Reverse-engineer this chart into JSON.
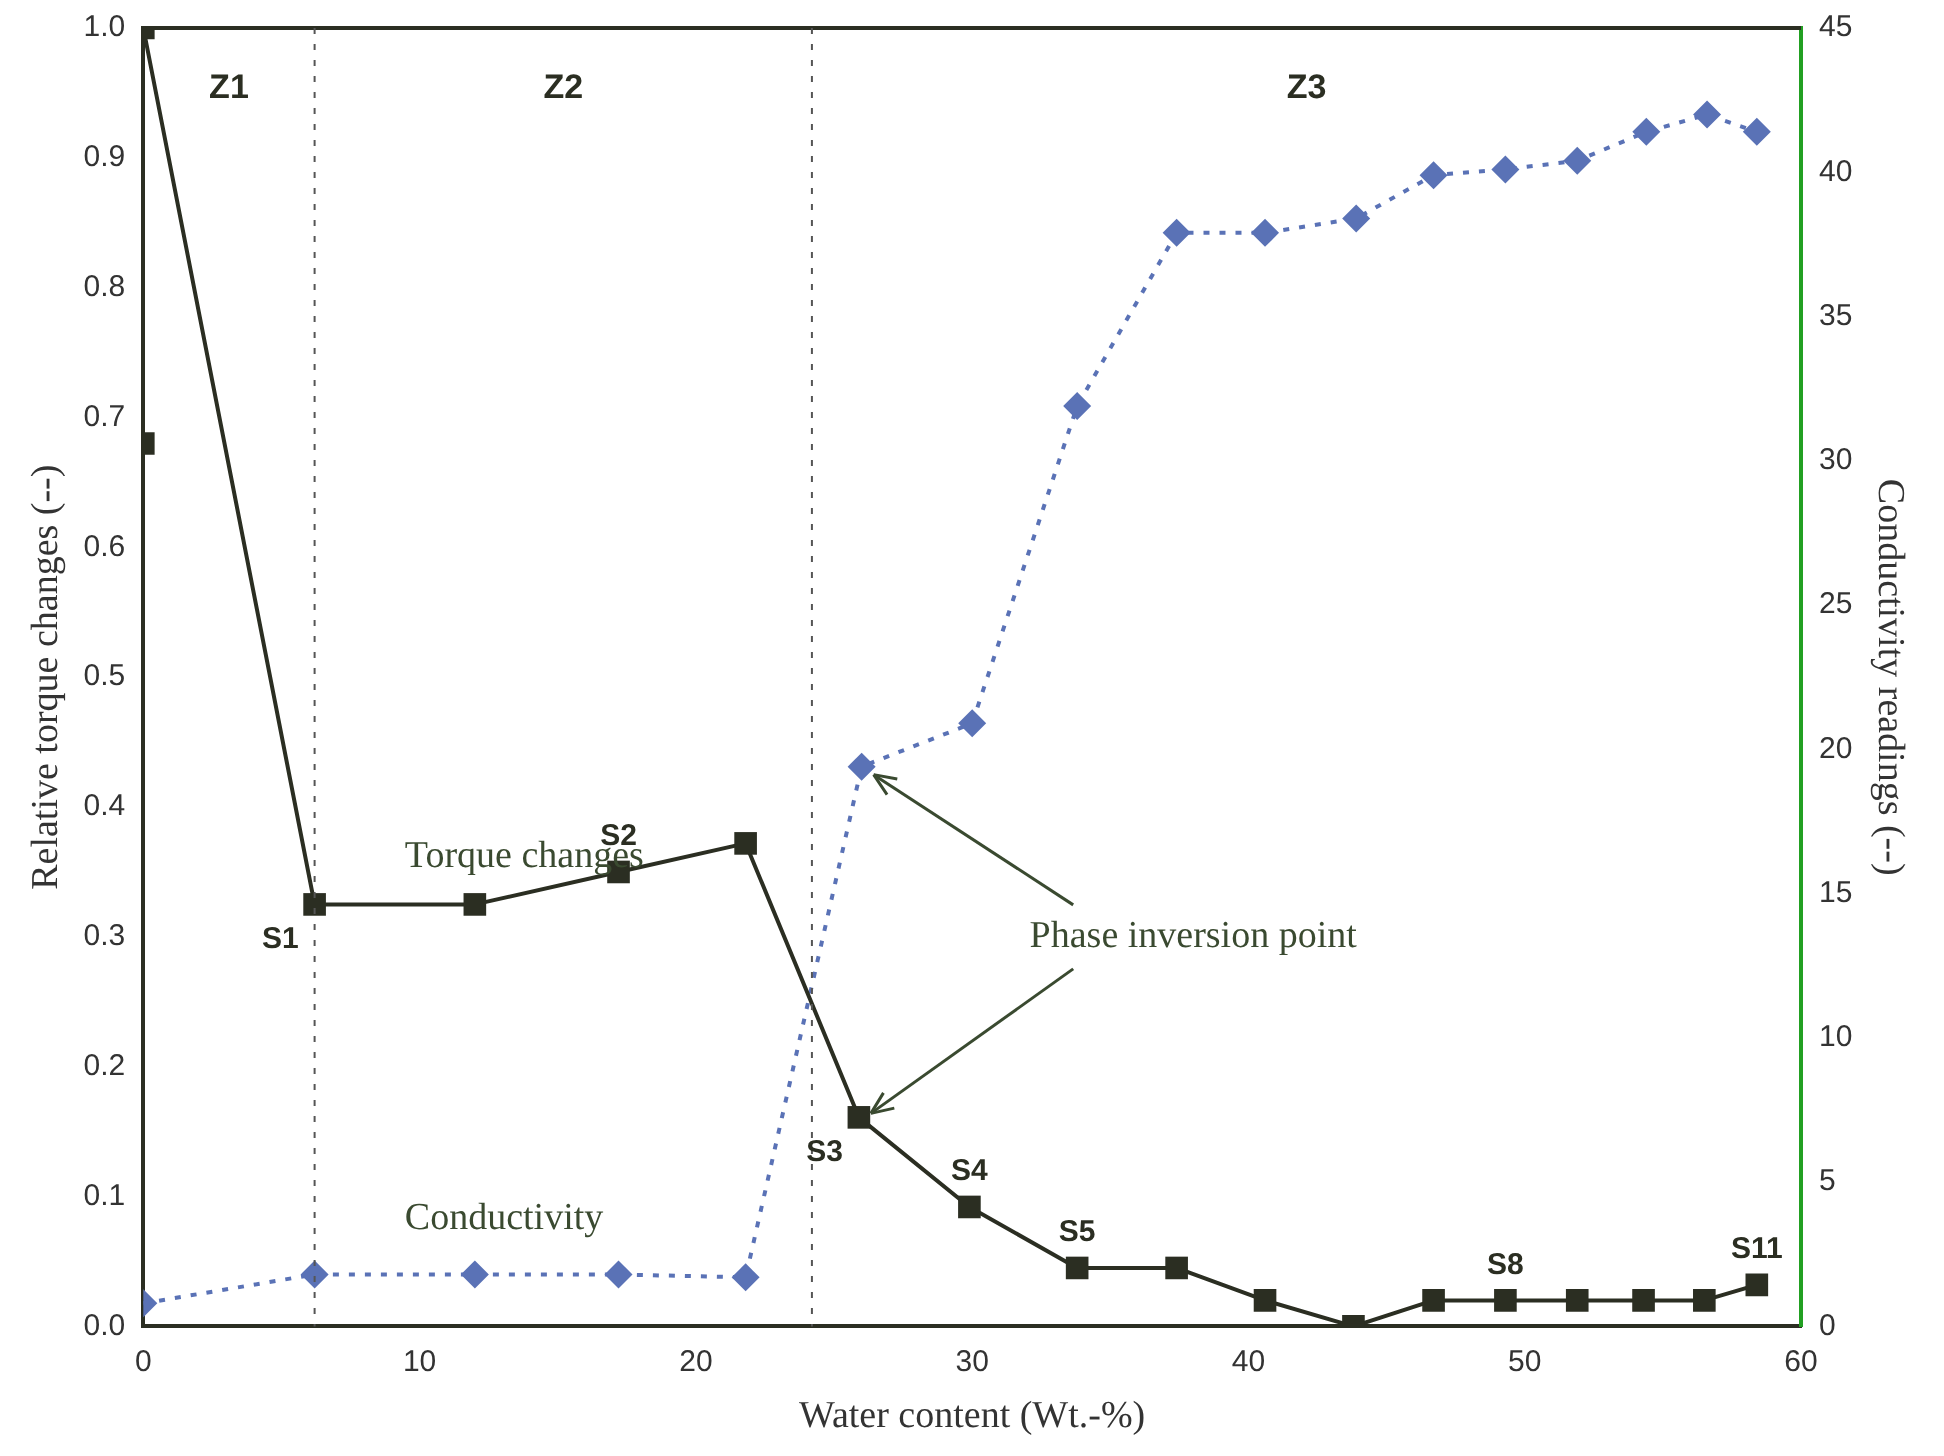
{
  "chart_data": {
    "type": "line",
    "xlabel": "Water content (Wt.-%)",
    "ylabel": "Relative torque changes (--)",
    "y2label": "Conductivity readings (--)",
    "xlim": [
      0,
      60
    ],
    "xticks": [
      0,
      10,
      20,
      30,
      40,
      50,
      60
    ],
    "ylim": [
      0,
      1
    ],
    "yticks": [
      {
        "value": 0,
        "label": "0.0"
      },
      0.1,
      0.2,
      0.3,
      0.4,
      0.5,
      0.6,
      0.7,
      0.8,
      0.9,
      {
        "value": 1,
        "label": "1.0"
      }
    ],
    "y2lim": [
      0,
      45
    ],
    "y2ticks": [
      0,
      5,
      10,
      15,
      20,
      25,
      30,
      35,
      40,
      45
    ],
    "grid": false,
    "legend": false,
    "series": [
      {
        "name": "Torque changes",
        "color": "#2b2e22",
        "marker": "square",
        "line_style": "solid",
        "x": [
          0,
          6.2,
          12.0,
          17.2,
          21.8,
          25.9,
          29.9,
          33.8,
          37.4,
          40.6,
          43.8,
          46.7,
          49.3,
          51.9,
          54.3,
          56.5,
          58.4
        ],
        "values": [
          1.0,
          0.325,
          0.325,
          0.35,
          0.372,
          0.161,
          0.092,
          0.045,
          0.045,
          0.02,
          0,
          0.02,
          0.02,
          0.02,
          0.02,
          0.02,
          0.032
        ]
      },
      {
        "color": "#2b2e22",
        "marker": "square",
        "x": [
          0
        ],
        "values": [
          0.68
        ]
      },
      {
        "name": "Conductivity",
        "color": "#5a72b6",
        "marker": "diamond",
        "line_style": "dotted",
        "axis": "y2",
        "x": [
          0,
          6.2,
          12.0,
          17.2,
          21.8,
          26.0,
          30.0,
          33.8,
          37.4,
          40.6,
          43.9,
          46.7,
          49.3,
          51.9,
          54.4,
          56.6,
          58.4
        ],
        "values": [
          0.8,
          1.8,
          1.8,
          1.8,
          1.7,
          19.4,
          20.9,
          31.9,
          37.9,
          37.9,
          38.4,
          39.9,
          40.1,
          40.4,
          41.4,
          42.0,
          41.4
        ]
      }
    ],
    "ref_lines": [
      {
        "axis": "x",
        "value": 6.2,
        "line_style": "dotted",
        "color": "#555555"
      },
      {
        "axis": "x",
        "value": 24.2,
        "line_style": "dotted",
        "color": "#555555"
      }
    ],
    "annotations": [
      "Z1",
      "Z2",
      "Z3",
      {
        "text": "S1",
        "x": 6.2,
        "y": 0.325
      },
      {
        "text": "S2",
        "x": 17.2,
        "y": 0.35
      },
      {
        "text": "S3",
        "x": 25.9,
        "y": 0.161
      },
      {
        "text": "S4",
        "x": 29.9,
        "y": 0.092
      },
      {
        "text": "S5",
        "x": 33.8,
        "y": 0.045
      },
      {
        "text": "S8",
        "x": 49.3,
        "y": 0.02
      },
      {
        "text": "S11",
        "x": 58.4,
        "y": 0.032
      },
      {
        "text": "Phase inversion point",
        "x": 25.9,
        "y": 0.161
      }
    ]
  }
}
